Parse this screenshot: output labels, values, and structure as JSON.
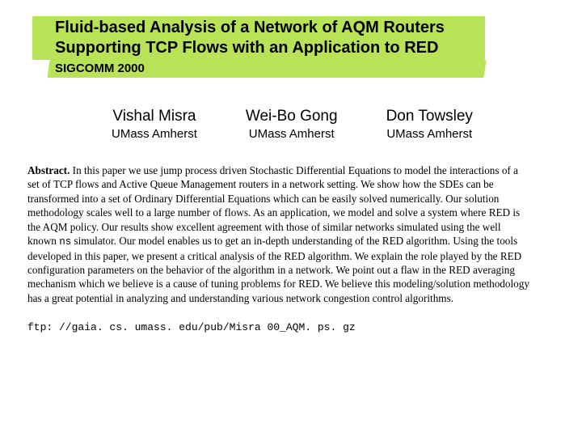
{
  "title_line1": "Fluid-based Analysis of a Network of AQM Routers",
  "title_line2": "Supporting TCP Flows with an Application to RED",
  "venue": "SIGCOMM 2000",
  "authors": [
    {
      "name": "Vishal Misra",
      "affiliation": "UMass Amherst"
    },
    {
      "name": "Wei-Bo Gong",
      "affiliation": "UMass Amherst"
    },
    {
      "name": "Don Towsley",
      "affiliation": "UMass Amherst"
    }
  ],
  "abstract_label": "Abstract.",
  "abstract_pre": " In this paper we use jump process driven Stochastic Differential Equations to model the interactions of a set of TCP flows and Active Queue Management routers in a network setting. We show how the SDEs can be transformed into a set of Ordinary Differential Equations which can be easily solved numerically. Our solution methodology scales well to a large number of flows. As an application, we model and solve a system where RED is the AQM policy. Our results show excellent agreement with those of similar networks simulated using the well known ",
  "ns_text": "ns",
  "abstract_post": " simulator. Our model enables us to get an in-depth understanding of the RED algorithm. Using the tools developed in this paper, we present a critical analysis of the RED algorithm. We explain the role played by the RED configuration parameters on the behavior of the algorithm in a network. We point out a flaw in the RED averaging mechanism which we believe is a cause of tuning problems for RED. We believe this modeling/solution methodology has a great potential in analyzing and understanding various network congestion control algorithms.",
  "link": "ftp: //gaia. cs. umass. edu/pub/Misra 00_AQM. ps. gz",
  "colors": {
    "highlight": "#b8e356",
    "background": "#ffffff",
    "text": "#000000"
  }
}
